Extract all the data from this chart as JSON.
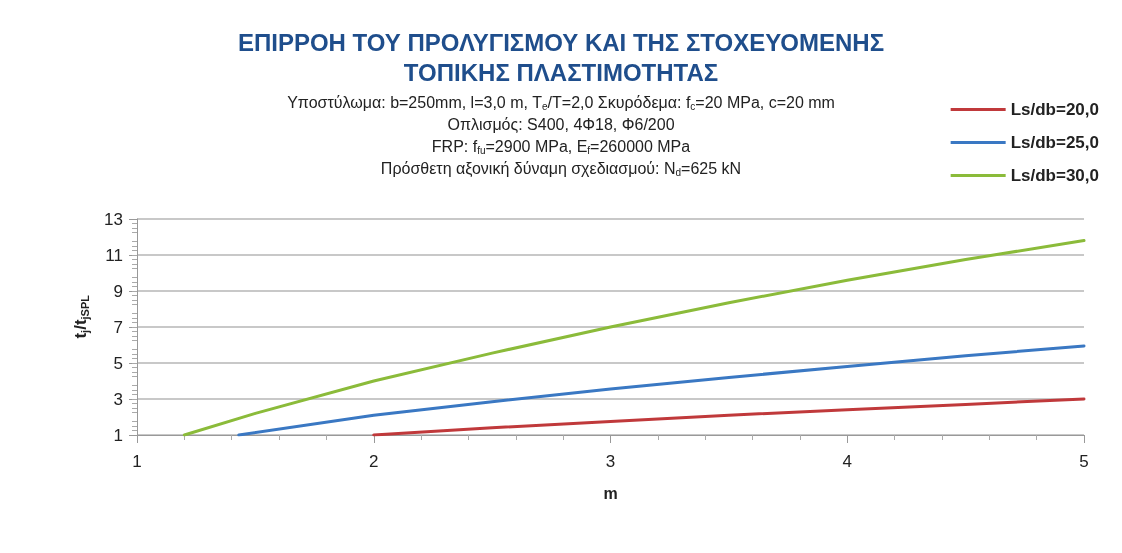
{
  "chart_data": {
    "type": "line",
    "title": "ΕΠΙΡΡΟΗ ΤΟΥ ΠΡΟΛΥΓΙΣΜΟΥ ΚΑΙ ΤΗΣ ΣΤΟΧΕΥΟΜΕΝΗΣ\nΤΟΠΙΚΗΣ ΠΛΑΣΤΙΜΟΤΗΤΑΣ",
    "subtitle": "Υποστύλωμα: b=250mm, l=3,0 m, T$_{e}$/T=2,0 Σκυρόδεμα: f$_{c}$=20 MPa, c=20 mm\nΟπλισμός: S400, 4Φ18, Φ6/200\nFRP: f$_{fu}$=2900 MPa, E$_{f}$=260000 MPa\nΠρόσθετη αξονική δύναμη σχεδιασμού: N$_{d}$=625 kN",
    "xlabel": "m",
    "ylabel": "t$_{j}$/t$_{jSPL}$",
    "series": [
      {
        "name": "Ls/db=20,0",
        "color": "#c0393b",
        "x": [
          2,
          2.5,
          3,
          3.5,
          4,
          4.5,
          5
        ],
        "values": [
          1,
          1.4,
          1.75,
          2.1,
          2.4,
          2.7,
          3.0
        ]
      },
      {
        "name": "Ls/db=25,0",
        "color": "#3a78c3",
        "x": [
          1.43,
          2,
          2.5,
          3,
          3.5,
          4,
          4.5,
          5
        ],
        "values": [
          1,
          2.1,
          2.85,
          3.55,
          4.2,
          4.8,
          5.4,
          5.95
        ]
      },
      {
        "name": "Ls/db=30,0",
        "color": "#8bbb3a",
        "x": [
          1.2,
          1.5,
          2,
          2.5,
          3,
          3.5,
          4,
          4.5,
          5
        ],
        "values": [
          1,
          2.2,
          4.0,
          5.55,
          7.0,
          8.35,
          9.6,
          10.75,
          11.8
        ]
      }
    ],
    "xlim": [
      1,
      5
    ],
    "xticks": [
      1,
      2,
      3,
      4,
      5
    ],
    "ylim": [
      1,
      13
    ],
    "yticks": [
      1,
      3,
      5,
      7,
      9,
      11,
      13
    ],
    "grid": "y",
    "legend": "top right",
    "marker": "none",
    "line_style": "solid"
  }
}
